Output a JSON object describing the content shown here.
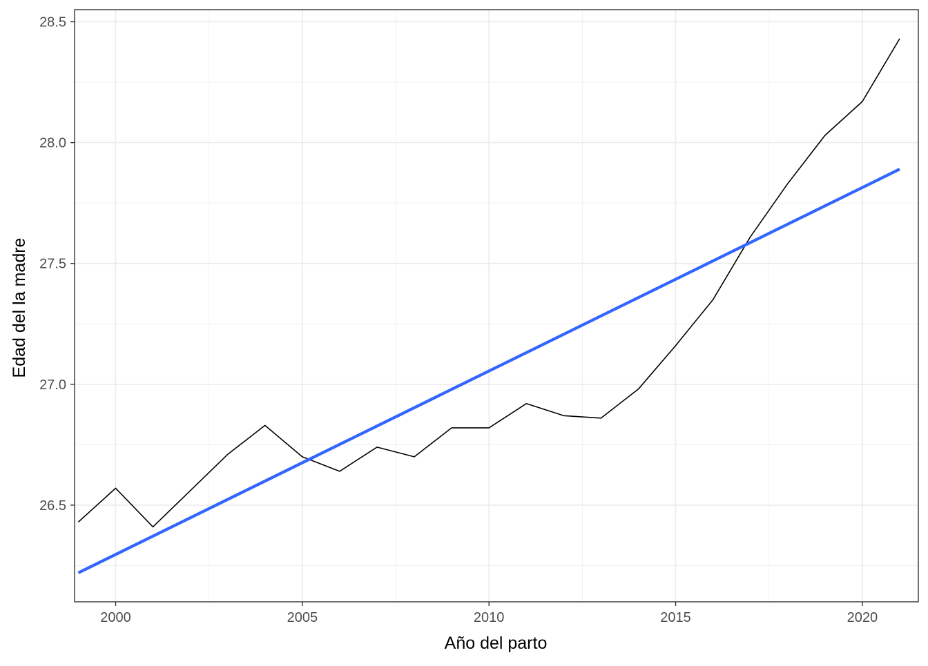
{
  "chart_data": {
    "type": "line",
    "title": "",
    "xlabel": "Año del parto",
    "ylabel": "Edad del la madre",
    "xlim": [
      1998.9,
      2021.5
    ],
    "ylim": [
      26.1,
      28.55
    ],
    "x_ticks": [
      2000,
      2005,
      2010,
      2015,
      2020
    ],
    "x_tick_labels": [
      "2000",
      "2005",
      "2010",
      "2015",
      "2020"
    ],
    "y_ticks": [
      26.5,
      27.0,
      27.5,
      28.0,
      28.5
    ],
    "y_tick_labels": [
      "26.5",
      "27.0",
      "27.5",
      "28.0",
      "28.5"
    ],
    "grid": true,
    "series": [
      {
        "x": [
          1999,
          2000,
          2001,
          2002,
          2003,
          2004,
          2005,
          2006,
          2007,
          2008,
          2009,
          2010,
          2011,
          2012,
          2013,
          2014,
          2015,
          2016,
          2017,
          2018,
          2019,
          2020,
          2021
        ],
        "values": [
          26.43,
          26.57,
          26.41,
          26.56,
          26.71,
          26.83,
          26.7,
          26.64,
          26.74,
          26.7,
          26.82,
          26.82,
          26.92,
          26.87,
          26.86,
          26.98,
          27.16,
          27.35,
          27.61,
          27.83,
          28.03,
          28.17,
          28.43
        ],
        "color": "#000000"
      },
      {
        "fit": "linear",
        "x": [
          1999,
          2021
        ],
        "values": [
          26.22,
          27.89
        ],
        "color": "#3366FF"
      }
    ]
  }
}
